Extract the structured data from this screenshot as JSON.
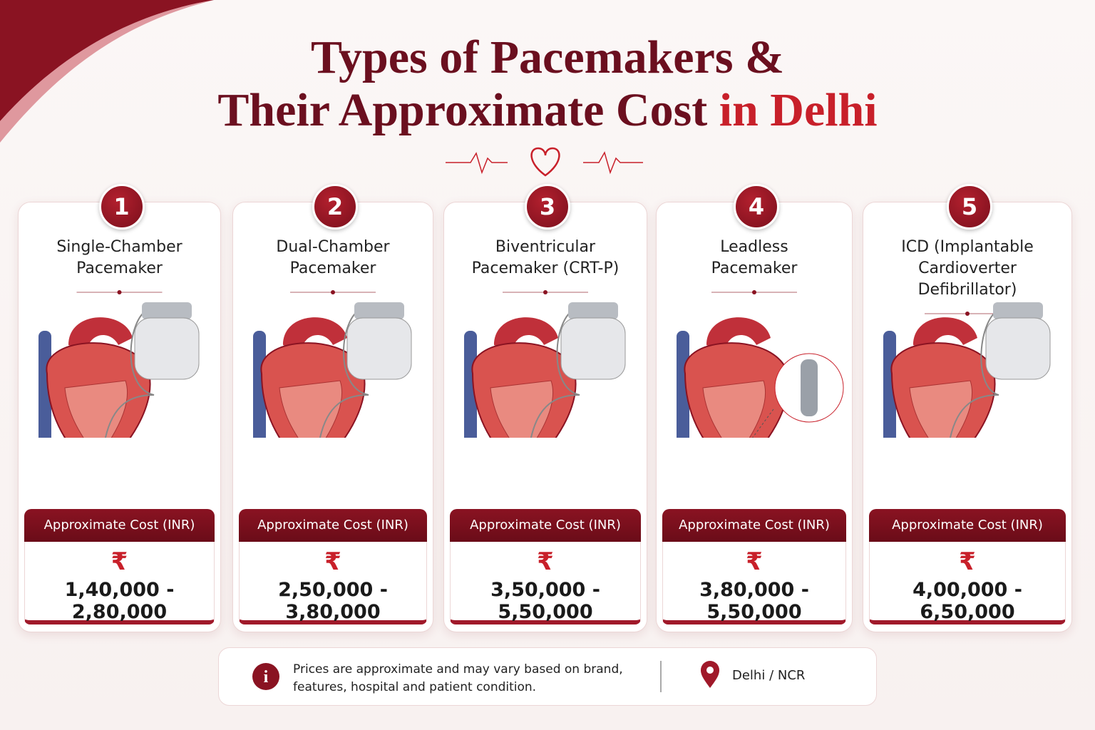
{
  "title": {
    "line1": "Types of Pacemakers &",
    "line2": "Their Approximate Cost",
    "highlight": "in Delhi"
  },
  "cards": [
    {
      "number": "1",
      "name_lines": [
        "Single-Chamber",
        "Pacemaker"
      ],
      "cost_label": "Approximate Cost (INR)",
      "currency": "₹",
      "range": "1,40,000 - 2,80,000"
    },
    {
      "number": "2",
      "name_lines": [
        "Dual-Chamber",
        "Pacemaker"
      ],
      "cost_label": "Approximate Cost (INR)",
      "currency": "₹",
      "range": "2,50,000 - 3,80,000"
    },
    {
      "number": "3",
      "name_lines": [
        "Biventricular",
        "Pacemaker (CRT-P)"
      ],
      "cost_label": "Approximate Cost (INR)",
      "currency": "₹",
      "range": "3,50,000 - 5,50,000"
    },
    {
      "number": "4",
      "name_lines": [
        "Leadless",
        "Pacemaker"
      ],
      "cost_label": "Approximate Cost (INR)",
      "currency": "₹",
      "range": "3,80,000 - 5,50,000"
    },
    {
      "number": "5",
      "name_lines": [
        "ICD (Implantable",
        "Cardioverter",
        "Defibrillator)"
      ],
      "cost_label": "Approximate Cost (INR)",
      "currency": "₹",
      "range": "4,00,000 - 6,50,000"
    }
  ],
  "footer": {
    "note_lines": [
      "Prices are approximate and may vary based on brand,",
      "features, hospital and patient condition."
    ],
    "location": "Delhi / NCR"
  }
}
